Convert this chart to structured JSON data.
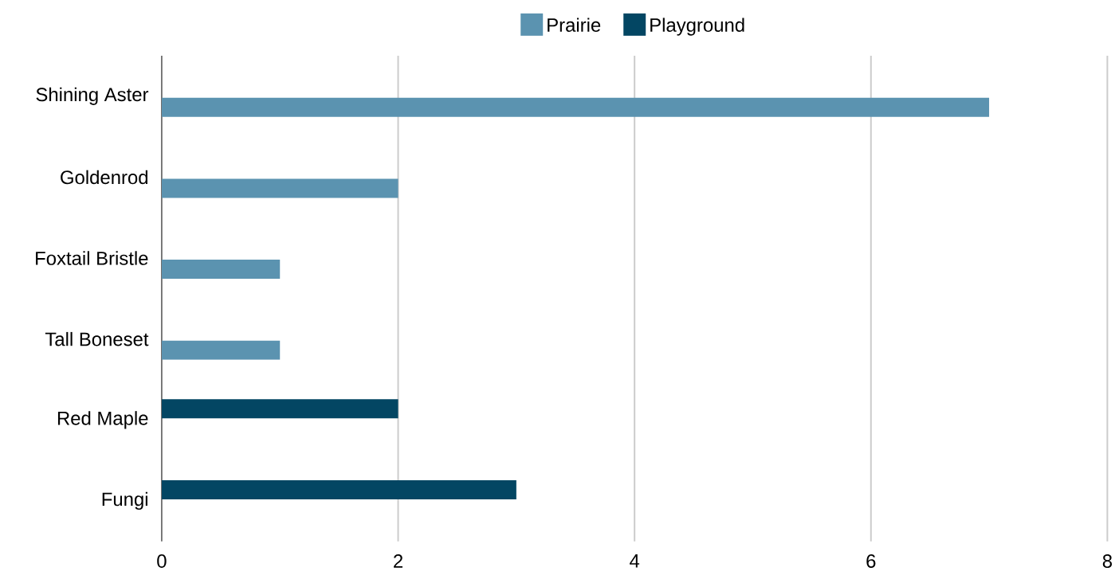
{
  "chart_data": {
    "type": "bar",
    "orientation": "horizontal",
    "categories": [
      "Shining Aster",
      "Goldenrod",
      "Foxtail Bristle",
      "Tall Boneset",
      "Red Maple",
      "Fungi"
    ],
    "series": [
      {
        "name": "Prairie",
        "color": "#5b93b0",
        "values": [
          7,
          2,
          1,
          1,
          null,
          null
        ]
      },
      {
        "name": "Playground",
        "color": "#034663",
        "values": [
          null,
          null,
          null,
          null,
          2,
          3
        ]
      }
    ],
    "xlim": [
      0,
      8
    ],
    "xticks": [
      0,
      2,
      4,
      6,
      8
    ],
    "grid": "x",
    "legend": "top"
  }
}
